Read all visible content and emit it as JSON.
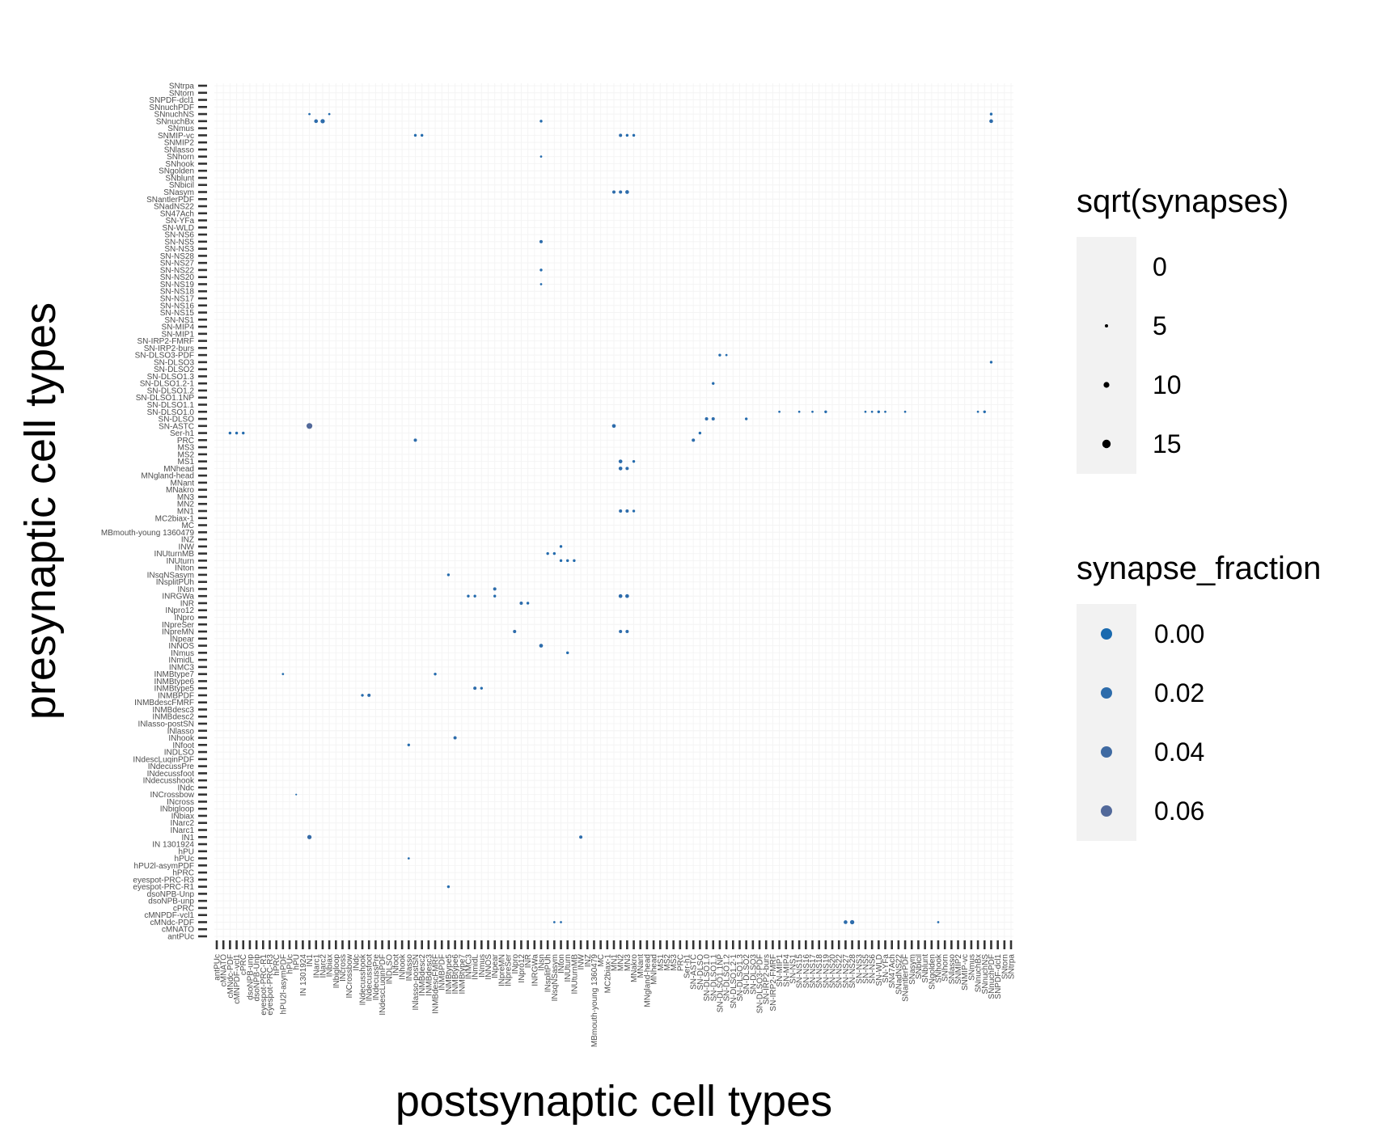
{
  "chart_data": {
    "type": "scatter",
    "title": "",
    "xlabel": "postsynaptic cell types",
    "ylabel": "presynaptic cell types",
    "grid": true,
    "legend_placement": "right",
    "x_categories": [
      "antPUc",
      "cMNATO",
      "cMNdc-PDF",
      "cMNPDF-vcl1",
      "cPRC",
      "dsoNPB-unp",
      "dsoNPB-Unp",
      "eyespot-PRC-R1",
      "eyespot-PRC-R3",
      "hPRC",
      "hPU2l-asymPDF",
      "hPUc",
      "hPU",
      "IN 1301924",
      "IN1",
      "INarc1",
      "INarc2",
      "INbiax",
      "INbigloop",
      "INcross",
      "INCrossbow",
      "INdc",
      "INdecusshook",
      "INdecussfoot",
      "INdecussPre",
      "INdescLuqinPDF",
      "INDLSO",
      "INfoot",
      "INhook",
      "INlasso",
      "INlasso-postSN",
      "INMBdesc2",
      "INMBdesc3",
      "INMBdescFMRF",
      "INMBPDF",
      "INMBtype5",
      "INMBtype6",
      "INMBtype7",
      "INMC3",
      "INmidL",
      "INmus",
      "INNOS",
      "INpear",
      "INpreMN",
      "INpreSer",
      "INpro",
      "INpro12",
      "INR",
      "INRGWa",
      "INsn",
      "INsplitPUh",
      "INsqNSasym",
      "INton",
      "INUturn",
      "INUturnMB",
      "INW",
      "INZ",
      "MBmouth-young 1360479",
      "MC",
      "MC2biax-1",
      "MN1",
      "MN2",
      "MN3",
      "MNakro",
      "MNant",
      "MNgland-head",
      "MNhead",
      "MS1",
      "MS2",
      "MS3",
      "PRC",
      "Ser-h1",
      "SN-ASTC",
      "SN-DLSO",
      "SN-DLSO1.0",
      "SN-DLSO1.1",
      "SN-DLSO1.1NP",
      "SN-DLSO1.2",
      "SN-DLSO1.2-1",
      "SN-DLSO1.3",
      "SN-DLSO2",
      "SN-DLSO3",
      "SN-DLSO3-PDF",
      "SN-IRP2-burs",
      "SN-IRP2-FMRF",
      "SN-MIP1",
      "SN-MIP4",
      "SN-NS1",
      "SN-NS15",
      "SN-NS16",
      "SN-NS17",
      "SN-NS18",
      "SN-NS19",
      "SN-NS20",
      "SN-NS22",
      "SN-NS27",
      "SN-NS28",
      "SN-NS3",
      "SN-NS5",
      "SN-NS6",
      "SN-WLD",
      "SN-YFa",
      "SN47Ach",
      "SNadNS22",
      "SNantlerPDF",
      "SNasym",
      "SNbicil",
      "SNblunt",
      "SNgolden",
      "SNhook",
      "SNhorn",
      "SNlasso",
      "SNMIP2",
      "SNMIP-vc",
      "SNmus",
      "SNnuchBx",
      "SNnuchNS",
      "SNnuchPDF",
      "SNPDF-dcl1",
      "SNtorn",
      "SNtrpa"
    ],
    "y_categories": [
      "antPUc",
      "cMNATO",
      "cMNdc-PDF",
      "cMNPDF-vcl1",
      "cPRC",
      "dsoNPB-unp",
      "dsoNPB-Unp",
      "eyespot-PRC-R1",
      "eyespot-PRC-R3",
      "hPRC",
      "hPU2l-asymPDF",
      "hPUc",
      "hPU",
      "IN 1301924",
      "IN1",
      "INarc1",
      "INarc2",
      "INbiax",
      "INbigloop",
      "INcross",
      "INCrossbow",
      "INdc",
      "INdecusshook",
      "INdecussfoot",
      "INdecussPre",
      "INdescLuqinPDF",
      "INDLSO",
      "INfoot",
      "INhook",
      "INlasso",
      "INlasso-postSN",
      "INMBdesc2",
      "INMBdesc3",
      "INMBdescFMRF",
      "INMBPDF",
      "INMBtype5",
      "INMBtype6",
      "INMBtype7",
      "INMC3",
      "INmidL",
      "INmus",
      "INNOS",
      "INpear",
      "INpreMN",
      "INpreSer",
      "INpro",
      "INpro12",
      "INR",
      "INRGWa",
      "INsn",
      "INsplitPUh",
      "INsqNSasym",
      "INton",
      "INUturn",
      "INUturnMB",
      "INW",
      "INZ",
      "MBmouth-young 1360479",
      "MC",
      "MC2biax-1",
      "MN1",
      "MN2",
      "MN3",
      "MNakro",
      "MNant",
      "MNgland-head",
      "MNhead",
      "MS1",
      "MS2",
      "MS3",
      "PRC",
      "Ser-h1",
      "SN-ASTC",
      "SN-DLSO",
      "SN-DLSO1.0",
      "SN-DLSO1.1",
      "SN-DLSO1.1NP",
      "SN-DLSO1.2",
      "SN-DLSO1.2-1",
      "SN-DLSO1.3",
      "SN-DLSO2",
      "SN-DLSO3",
      "SN-DLSO3-PDF",
      "SN-IRP2-burs",
      "SN-IRP2-FMRF",
      "SN-MIP1",
      "SN-MIP4",
      "SN-NS1",
      "SN-NS15",
      "SN-NS16",
      "SN-NS17",
      "SN-NS18",
      "SN-NS19",
      "SN-NS20",
      "SN-NS22",
      "SN-NS27",
      "SN-NS28",
      "SN-NS3",
      "SN-NS5",
      "SN-NS6",
      "SN-WLD",
      "SN-YFa",
      "SN47Ach",
      "SNadNS22",
      "SNantlerPDF",
      "SNasym",
      "SNbicil",
      "SNblunt",
      "SNgolden",
      "SNhook",
      "SNhorn",
      "SNlasso",
      "SNMIP2",
      "SNMIP-vc",
      "SNmus",
      "SNnuchBx",
      "SNnuchNS",
      "SNnuchPDF",
      "SNPDF-dcl1",
      "SNtorn",
      "SNtrpa"
    ],
    "size_legend": {
      "title": "sqrt(synapses)",
      "breaks": [
        0,
        5,
        10,
        15
      ]
    },
    "color_legend": {
      "title": "synapse_fraction",
      "breaks": [
        0.0,
        0.02,
        0.04,
        0.06
      ],
      "labels": [
        "0.00",
        "0.02",
        "0.04",
        "0.06"
      ],
      "colors": [
        "#1a6aaf",
        "#2d6cab",
        "#3f6aa2",
        "#52699a"
      ]
    },
    "points": [
      [
        10,
        37,
        3,
        0.01
      ],
      [
        12,
        20,
        2,
        0.01
      ],
      [
        14,
        116,
        3,
        0.01
      ],
      [
        15,
        115,
        6,
        0.02
      ],
      [
        16,
        115,
        7,
        0.02
      ],
      [
        14,
        72,
        10,
        0.06
      ],
      [
        14,
        14,
        7,
        0.03
      ],
      [
        35,
        7,
        4,
        0.01
      ],
      [
        35,
        51,
        4,
        0.01
      ],
      [
        60,
        72,
        6,
        0.02
      ],
      [
        55,
        14,
        5,
        0.02
      ],
      [
        61,
        67,
        6,
        0.02
      ],
      [
        61,
        66,
        6,
        0.02
      ],
      [
        62,
        66,
        5,
        0.02
      ],
      [
        63,
        67,
        4,
        0.01
      ],
      [
        61,
        60,
        5,
        0.02
      ],
      [
        62,
        60,
        5,
        0.02
      ],
      [
        63,
        60,
        4,
        0.01
      ],
      [
        61,
        48,
        6,
        0.02
      ],
      [
        62,
        48,
        6,
        0.02
      ],
      [
        61,
        43,
        5,
        0.02
      ],
      [
        62,
        43,
        5,
        0.02
      ],
      [
        72,
        70,
        5,
        0.02
      ],
      [
        73,
        71,
        4,
        0.01
      ],
      [
        74,
        73,
        5,
        0.02
      ],
      [
        75,
        73,
        5,
        0.02
      ],
      [
        80,
        73,
        4,
        0.01
      ],
      [
        95,
        2,
        6,
        0.02
      ],
      [
        96,
        2,
        7,
        0.02
      ],
      [
        109,
        2,
        3,
        0.01
      ],
      [
        117,
        81,
        4,
        0.01
      ],
      [
        117,
        116,
        4,
        0.01
      ],
      [
        117,
        115,
        6,
        0.02
      ],
      [
        22,
        34,
        4,
        0.01
      ],
      [
        23,
        34,
        5,
        0.02
      ],
      [
        39,
        35,
        5,
        0.02
      ],
      [
        40,
        35,
        4,
        0.01
      ],
      [
        42,
        48,
        4,
        0.01
      ],
      [
        42,
        49,
        5,
        0.02
      ],
      [
        38,
        48,
        4,
        0.01
      ],
      [
        39,
        48,
        4,
        0.01
      ],
      [
        50,
        54,
        4,
        0.01
      ],
      [
        51,
        54,
        4,
        0.01
      ],
      [
        52,
        55,
        4,
        0.01
      ],
      [
        53,
        40,
        4,
        0.01
      ],
      [
        60,
        105,
        5,
        0.02
      ],
      [
        61,
        105,
        5,
        0.02
      ],
      [
        62,
        105,
        6,
        0.02
      ],
      [
        49,
        115,
        4,
        0.01
      ],
      [
        49,
        94,
        4,
        0.01
      ],
      [
        49,
        92,
        3,
        0.01
      ],
      [
        49,
        98,
        5,
        0.02
      ],
      [
        45,
        43,
        5,
        0.02
      ],
      [
        46,
        47,
        5,
        0.02
      ],
      [
        47,
        47,
        4,
        0.01
      ],
      [
        49,
        41,
        6,
        0.02
      ],
      [
        52,
        53,
        4,
        0.01
      ],
      [
        53,
        53,
        4,
        0.01
      ],
      [
        54,
        53,
        4,
        0.01
      ],
      [
        30,
        70,
        5,
        0.02
      ],
      [
        36,
        28,
        5,
        0.02
      ],
      [
        29,
        27,
        4,
        0.01
      ],
      [
        29,
        11,
        3,
        0.01
      ],
      [
        51,
        2,
        3,
        0.01
      ],
      [
        52,
        2,
        3,
        0.01
      ],
      [
        33,
        37,
        4,
        0.01
      ],
      [
        17,
        116,
        3,
        0.01
      ],
      [
        75,
        78,
        4,
        0.01
      ],
      [
        76,
        82,
        4,
        0.01
      ],
      [
        77,
        82,
        3,
        0.01
      ],
      [
        90,
        74,
        3,
        0.01
      ],
      [
        88,
        74,
        3,
        0.01
      ],
      [
        85,
        74,
        3,
        0.01
      ],
      [
        92,
        74,
        4,
        0.01
      ],
      [
        98,
        74,
        3,
        0.01
      ],
      [
        99,
        74,
        3,
        0.01
      ],
      [
        100,
        74,
        4,
        0.01
      ],
      [
        101,
        74,
        3,
        0.01
      ],
      [
        104,
        74,
        3,
        0.01
      ],
      [
        115,
        74,
        3,
        0.01
      ],
      [
        116,
        74,
        4,
        0.01
      ],
      [
        30,
        113,
        4,
        0.01
      ],
      [
        31,
        113,
        4,
        0.01
      ],
      [
        49,
        110,
        3,
        0.01
      ],
      [
        61,
        113,
        5,
        0.02
      ],
      [
        62,
        113,
        4,
        0.01
      ],
      [
        63,
        113,
        4,
        0.01
      ],
      [
        2,
        71,
        4,
        0.01
      ],
      [
        3,
        71,
        4,
        0.01
      ],
      [
        4,
        71,
        4,
        0.01
      ]
    ]
  }
}
